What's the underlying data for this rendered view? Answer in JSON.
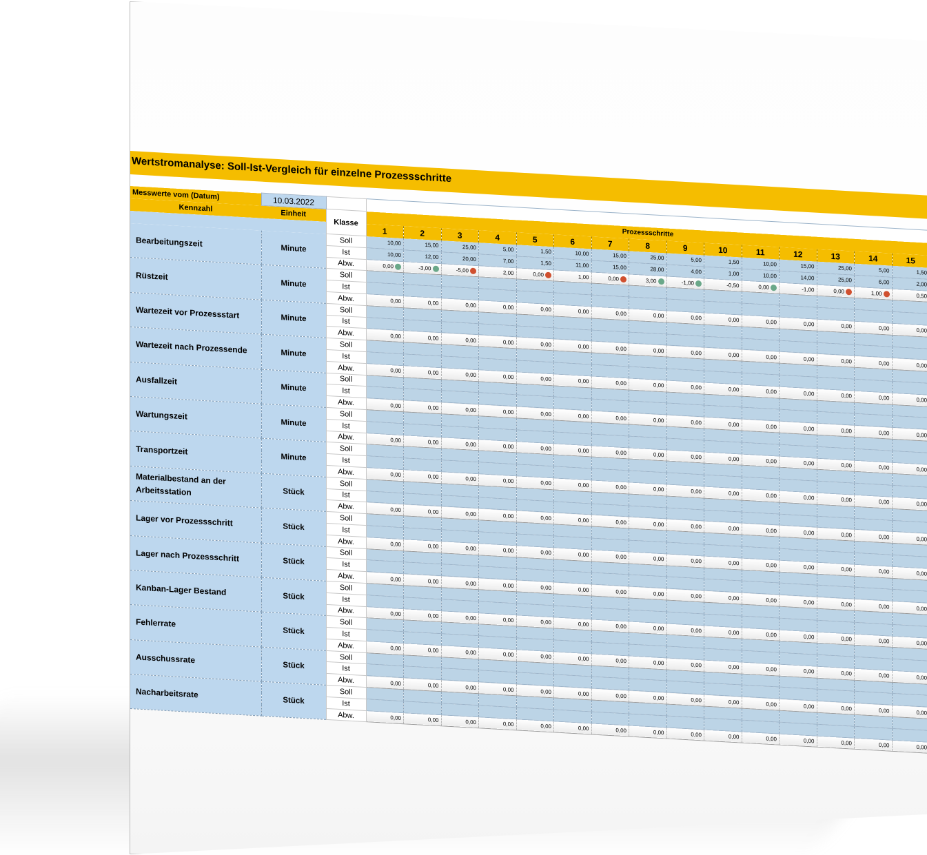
{
  "title": "Wertstromanalyse: Soll-Ist-Vergleich für einzelne Prozessschritte",
  "date_label": "Messwerte vom (Datum)",
  "date_value": "10.03.2022",
  "headers": {
    "kennzahl": "Kennzahl",
    "einheit": "Einheit",
    "klasse": "Klasse",
    "prozessschritte": "Prozessschritte"
  },
  "steps": [
    "1",
    "2",
    "3",
    "4",
    "5",
    "6",
    "7",
    "8",
    "9",
    "10",
    "11",
    "12",
    "13",
    "14",
    "15"
  ],
  "classes": [
    "Soll",
    "Ist",
    "Abw."
  ],
  "status_colors": {
    "ok": "#6aa889",
    "deviation": "#d0502f"
  },
  "metrics": [
    {
      "name": "Bearbeitungszeit",
      "unit": "Minute",
      "soll": [
        "10,00",
        "15,00",
        "25,00",
        "5,00",
        "1,50",
        "10,00",
        "15,00",
        "25,00",
        "5,00",
        "1,50",
        "10,00",
        "15,00",
        "25,00",
        "5,00",
        "1,50"
      ],
      "ist": [
        "10,00",
        "12,00",
        "20,00",
        "7,00",
        "1,50",
        "11,00",
        "15,00",
        "28,00",
        "4,00",
        "1,00",
        "10,00",
        "14,00",
        "25,00",
        "6,00",
        "2,00"
      ],
      "abw": [
        "0,00",
        "-3,00",
        "-5,00",
        "2,00",
        "0,00",
        "1,00",
        "0,00",
        "3,00",
        "-1,00",
        "-0,50",
        "0,00",
        "-1,00",
        "0,00",
        "1,00",
        "0,50"
      ],
      "status": [
        "ok",
        "ok",
        "deviation",
        "",
        "deviation",
        "",
        "deviation",
        "ok",
        "ok",
        "",
        "ok",
        "",
        "deviation",
        "deviation",
        ""
      ]
    },
    {
      "name": "Rüstzeit",
      "unit": "Minute"
    },
    {
      "name": "Wartezeit vor Prozessstart",
      "unit": "Minute"
    },
    {
      "name": "Wartezeit nach Prozessende",
      "unit": "Minute"
    },
    {
      "name": "Ausfallzeit",
      "unit": "Minute"
    },
    {
      "name": "Wartungszeit",
      "unit": "Minute"
    },
    {
      "name": "Transportzeit",
      "unit": "Minute"
    },
    {
      "name": "Materialbestand an der Arbeitsstation",
      "unit": "Stück"
    },
    {
      "name": "Lager vor Prozessschritt",
      "unit": "Stück"
    },
    {
      "name": "Lager nach Prozessschritt",
      "unit": "Stück"
    },
    {
      "name": "Kanban-Lager Bestand",
      "unit": "Stück"
    },
    {
      "name": "Fehlerrate",
      "unit": "Stück"
    },
    {
      "name": "Ausschussrate",
      "unit": "Stück"
    },
    {
      "name": "Nacharbeitsrate",
      "unit": "Stück"
    }
  ],
  "default_abw": "0,00"
}
